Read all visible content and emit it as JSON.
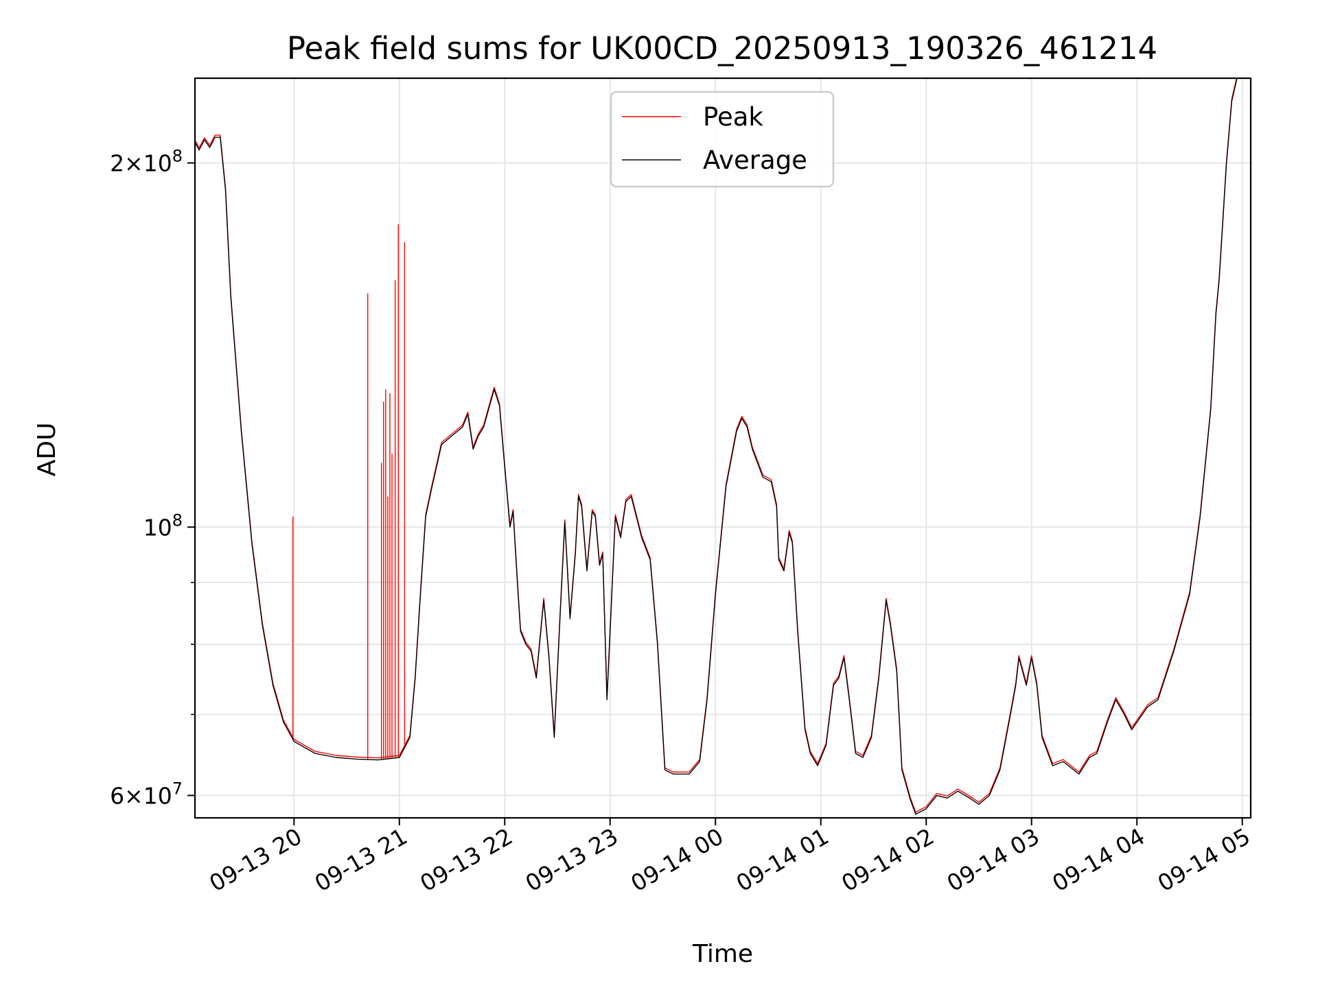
{
  "chart_data": {
    "type": "line",
    "title": "Peak field sums for UK00CD_20250913_190326_461214",
    "xlabel": "Time",
    "ylabel": "ADU",
    "yscale": "log",
    "ylim": [
      57500000,
      235000000
    ],
    "xlim_hours": [
      19.06,
      29.08
    ],
    "grid": true,
    "legend_position": "top-center",
    "x_ticks": [
      {
        "value": 20,
        "label": "09-13 20"
      },
      {
        "value": 21,
        "label": "09-13 21"
      },
      {
        "value": 22,
        "label": "09-13 22"
      },
      {
        "value": 23,
        "label": "09-13 23"
      },
      {
        "value": 24,
        "label": "09-14 00"
      },
      {
        "value": 25,
        "label": "09-14 01"
      },
      {
        "value": 26,
        "label": "09-14 02"
      },
      {
        "value": 27,
        "label": "09-14 03"
      },
      {
        "value": 28,
        "label": "09-14 04"
      },
      {
        "value": 29,
        "label": "09-14 05"
      }
    ],
    "y_major_ticks": [
      {
        "value": 60000000,
        "mantissa": "6",
        "exponent": "7"
      },
      {
        "value": 100000000,
        "mantissa": "",
        "exponent": "8"
      },
      {
        "value": 200000000,
        "mantissa": "2",
        "exponent": "8"
      }
    ],
    "y_minor_ticks": [
      70000000,
      80000000,
      90000000
    ],
    "series": [
      {
        "name": "Average",
        "color": "#000000",
        "points": [
          [
            19.06,
            208000000
          ],
          [
            19.1,
            205000000
          ],
          [
            19.15,
            209000000
          ],
          [
            19.2,
            206000000
          ],
          [
            19.25,
            210000000
          ],
          [
            19.3,
            210000000
          ],
          [
            19.35,
            190000000
          ],
          [
            19.4,
            155000000
          ],
          [
            19.5,
            120000000
          ],
          [
            19.6,
            97000000
          ],
          [
            19.7,
            83000000
          ],
          [
            19.8,
            74000000
          ],
          [
            19.9,
            69000000
          ],
          [
            20.0,
            66500000
          ],
          [
            20.2,
            65000000
          ],
          [
            20.4,
            64500000
          ],
          [
            20.6,
            64300000
          ],
          [
            20.8,
            64200000
          ],
          [
            21.0,
            64500000
          ],
          [
            21.1,
            67000000
          ],
          [
            21.15,
            75000000
          ],
          [
            21.2,
            88000000
          ],
          [
            21.25,
            102000000
          ],
          [
            21.3,
            107000000
          ],
          [
            21.4,
            117000000
          ],
          [
            21.5,
            119000000
          ],
          [
            21.6,
            121000000
          ],
          [
            21.65,
            124000000
          ],
          [
            21.7,
            116000000
          ],
          [
            21.75,
            119000000
          ],
          [
            21.8,
            121000000
          ],
          [
            21.9,
            130000000
          ],
          [
            21.95,
            126000000
          ],
          [
            22.0,
            112000000
          ],
          [
            22.05,
            100000000
          ],
          [
            22.08,
            103000000
          ],
          [
            22.12,
            90000000
          ],
          [
            22.15,
            82000000
          ],
          [
            22.2,
            80000000
          ],
          [
            22.25,
            79000000
          ],
          [
            22.3,
            75000000
          ],
          [
            22.37,
            87000000
          ],
          [
            22.42,
            78000000
          ],
          [
            22.47,
            67000000
          ],
          [
            22.53,
            86000000
          ],
          [
            22.57,
            101000000
          ],
          [
            22.62,
            84000000
          ],
          [
            22.67,
            95000000
          ],
          [
            22.7,
            106000000
          ],
          [
            22.73,
            104000000
          ],
          [
            22.78,
            92000000
          ],
          [
            22.83,
            103000000
          ],
          [
            22.86,
            102000000
          ],
          [
            22.9,
            93000000
          ],
          [
            22.93,
            95000000
          ],
          [
            22.97,
            72000000
          ],
          [
            23.0,
            82000000
          ],
          [
            23.05,
            102000000
          ],
          [
            23.1,
            98000000
          ],
          [
            23.15,
            105000000
          ],
          [
            23.2,
            106000000
          ],
          [
            23.3,
            98000000
          ],
          [
            23.38,
            94000000
          ],
          [
            23.45,
            80000000
          ],
          [
            23.52,
            63000000
          ],
          [
            23.6,
            62500000
          ],
          [
            23.75,
            62500000
          ],
          [
            23.85,
            64000000
          ],
          [
            23.92,
            72000000
          ],
          [
            24.0,
            88000000
          ],
          [
            24.1,
            108000000
          ],
          [
            24.2,
            120000000
          ],
          [
            24.25,
            123000000
          ],
          [
            24.3,
            121000000
          ],
          [
            24.35,
            116000000
          ],
          [
            24.45,
            110000000
          ],
          [
            24.53,
            109000000
          ],
          [
            24.58,
            104000000
          ],
          [
            24.6,
            94000000
          ],
          [
            24.65,
            92000000
          ],
          [
            24.7,
            99000000
          ],
          [
            24.73,
            97000000
          ],
          [
            24.78,
            82000000
          ],
          [
            24.85,
            68000000
          ],
          [
            24.9,
            65000000
          ],
          [
            24.97,
            63500000
          ],
          [
            25.05,
            66000000
          ],
          [
            25.12,
            74000000
          ],
          [
            25.17,
            75000000
          ],
          [
            25.22,
            78000000
          ],
          [
            25.27,
            72000000
          ],
          [
            25.33,
            65000000
          ],
          [
            25.4,
            64500000
          ],
          [
            25.48,
            67000000
          ],
          [
            25.55,
            75000000
          ],
          [
            25.62,
            87000000
          ],
          [
            25.66,
            83000000
          ],
          [
            25.72,
            76000000
          ],
          [
            25.77,
            63000000
          ],
          [
            25.85,
            59500000
          ],
          [
            25.9,
            57900000
          ],
          [
            26.0,
            58500000
          ],
          [
            26.1,
            60000000
          ],
          [
            26.2,
            59700000
          ],
          [
            26.3,
            60500000
          ],
          [
            26.4,
            59800000
          ],
          [
            26.5,
            59000000
          ],
          [
            26.6,
            60000000
          ],
          [
            26.7,
            63000000
          ],
          [
            26.8,
            70000000
          ],
          [
            26.85,
            74000000
          ],
          [
            26.88,
            78000000
          ],
          [
            26.95,
            74000000
          ],
          [
            27.0,
            78000000
          ],
          [
            27.05,
            74000000
          ],
          [
            27.1,
            67000000
          ],
          [
            27.2,
            63500000
          ],
          [
            27.3,
            64000000
          ],
          [
            27.4,
            63000000
          ],
          [
            27.45,
            62500000
          ],
          [
            27.55,
            64500000
          ],
          [
            27.62,
            65000000
          ],
          [
            27.72,
            69000000
          ],
          [
            27.8,
            72000000
          ],
          [
            27.88,
            70000000
          ],
          [
            27.95,
            68000000
          ],
          [
            28.1,
            71000000
          ],
          [
            28.2,
            72000000
          ],
          [
            28.35,
            79000000
          ],
          [
            28.5,
            88000000
          ],
          [
            28.6,
            102000000
          ],
          [
            28.7,
            125000000
          ],
          [
            28.75,
            150000000
          ],
          [
            28.78,
            160000000
          ],
          [
            28.85,
            200000000
          ],
          [
            28.9,
            225000000
          ],
          [
            28.95,
            235000000
          ]
        ]
      },
      {
        "name": "Peak",
        "color": "#ff0000",
        "spikes": [
          [
            19.99,
            102000000
          ],
          [
            20.7,
            156000000
          ],
          [
            20.83,
            113000000
          ],
          [
            20.85,
            127000000
          ],
          [
            20.87,
            130000000
          ],
          [
            20.89,
            106000000
          ],
          [
            20.91,
            129000000
          ],
          [
            20.93,
            115000000
          ],
          [
            20.96,
            160000000
          ],
          [
            20.99,
            178000000
          ],
          [
            21.05,
            172000000
          ]
        ]
      }
    ]
  },
  "legend": {
    "items": [
      {
        "label": "Peak",
        "color": "#ff0000"
      },
      {
        "label": "Average",
        "color": "#000000"
      }
    ]
  }
}
